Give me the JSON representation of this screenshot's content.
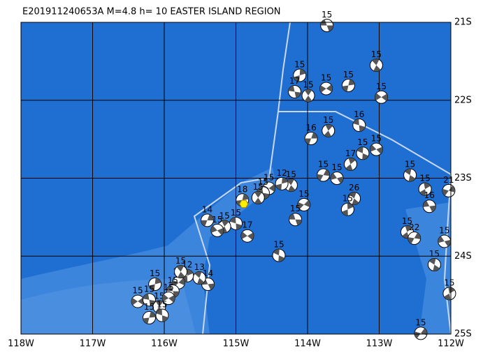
{
  "title": "E201911240653A M=4.8 h= 10 EASTER ISLAND REGION",
  "map": {
    "xlim": [
      -118,
      -112
    ],
    "ylim": [
      -25,
      -21
    ],
    "xticks": [
      {
        "value": -118,
        "label": "118W"
      },
      {
        "value": -117,
        "label": "117W"
      },
      {
        "value": -116,
        "label": "116W"
      },
      {
        "value": -115,
        "label": "115W"
      },
      {
        "value": -114,
        "label": "114W"
      },
      {
        "value": -113,
        "label": "113W"
      },
      {
        "value": -112,
        "label": "112W"
      }
    ],
    "yticks": [
      {
        "value": -21,
        "label": "21S"
      },
      {
        "value": -22,
        "label": "22S"
      },
      {
        "value": -23,
        "label": "23S"
      },
      {
        "value": -24,
        "label": "24S"
      },
      {
        "value": -25,
        "label": "25S"
      }
    ],
    "epicenter": {
      "lon": -114.89,
      "lat": -23.33
    },
    "events": [
      {
        "lon": -113.73,
        "lat": -21.04,
        "depth": 15
      },
      {
        "lon": -113.04,
        "lat": -21.55,
        "depth": 15
      },
      {
        "lon": -114.11,
        "lat": -21.68,
        "depth": 15
      },
      {
        "lon": -113.74,
        "lat": -21.85,
        "depth": 15
      },
      {
        "lon": -114.18,
        "lat": -21.89,
        "depth": 17
      },
      {
        "lon": -113.99,
        "lat": -21.94,
        "depth": 15
      },
      {
        "lon": -113.43,
        "lat": -21.81,
        "depth": 15
      },
      {
        "lon": -112.97,
        "lat": -21.96,
        "depth": 15
      },
      {
        "lon": -113.28,
        "lat": -22.32,
        "depth": 16
      },
      {
        "lon": -113.71,
        "lat": -22.39,
        "depth": 15
      },
      {
        "lon": -113.95,
        "lat": -22.49,
        "depth": 16
      },
      {
        "lon": -113.04,
        "lat": -22.63,
        "depth": 15
      },
      {
        "lon": -113.23,
        "lat": -22.68,
        "depth": 15
      },
      {
        "lon": -113.4,
        "lat": -22.82,
        "depth": 17
      },
      {
        "lon": -113.78,
        "lat": -22.96,
        "depth": 15
      },
      {
        "lon": -113.59,
        "lat": -23.0,
        "depth": 15
      },
      {
        "lon": -112.57,
        "lat": -22.96,
        "depth": 15
      },
      {
        "lon": -112.36,
        "lat": -23.14,
        "depth": 15
      },
      {
        "lon": -112.03,
        "lat": -23.16,
        "depth": 21
      },
      {
        "lon": -112.3,
        "lat": -23.36,
        "depth": 16
      },
      {
        "lon": -113.35,
        "lat": -23.26,
        "depth": 26
      },
      {
        "lon": -113.44,
        "lat": -23.4,
        "depth": 15
      },
      {
        "lon": -114.05,
        "lat": -23.34,
        "depth": 15
      },
      {
        "lon": -114.17,
        "lat": -23.53,
        "depth": 15
      },
      {
        "lon": -114.23,
        "lat": -23.09,
        "depth": 15
      },
      {
        "lon": -114.36,
        "lat": -23.07,
        "depth": 12
      },
      {
        "lon": -114.54,
        "lat": -23.13,
        "depth": 15
      },
      {
        "lon": -114.62,
        "lat": -23.19,
        "depth": 15
      },
      {
        "lon": -114.69,
        "lat": -23.25,
        "depth": 15
      },
      {
        "lon": -114.91,
        "lat": -23.28,
        "depth": 18
      },
      {
        "lon": -114.84,
        "lat": -23.74,
        "depth": 17
      },
      {
        "lon": -115.0,
        "lat": -23.58,
        "depth": 15
      },
      {
        "lon": -115.16,
        "lat": -23.62,
        "depth": 15
      },
      {
        "lon": -115.4,
        "lat": -23.54,
        "depth": 14
      },
      {
        "lon": -115.26,
        "lat": -23.67,
        "depth": 15
      },
      {
        "lon": -114.4,
        "lat": -23.99,
        "depth": 15
      },
      {
        "lon": -112.61,
        "lat": -23.69,
        "depth": 15
      },
      {
        "lon": -112.51,
        "lat": -23.77,
        "depth": 22
      },
      {
        "lon": -112.09,
        "lat": -23.81,
        "depth": 15
      },
      {
        "lon": -112.23,
        "lat": -24.11,
        "depth": 15
      },
      {
        "lon": -112.02,
        "lat": -24.48,
        "depth": 15
      },
      {
        "lon": -112.42,
        "lat": -24.99,
        "depth": 15
      },
      {
        "lon": -115.39,
        "lat": -24.36,
        "depth": 14
      },
      {
        "lon": -115.51,
        "lat": -24.28,
        "depth": 13
      },
      {
        "lon": -115.68,
        "lat": -24.25,
        "depth": 12
      },
      {
        "lon": -115.8,
        "lat": -24.34,
        "depth": 26
      },
      {
        "lon": -115.88,
        "lat": -24.45,
        "depth": 15
      },
      {
        "lon": -115.77,
        "lat": -24.2,
        "depth": 15
      },
      {
        "lon": -116.13,
        "lat": -24.36,
        "depth": 15
      },
      {
        "lon": -116.37,
        "lat": -24.58,
        "depth": 15
      },
      {
        "lon": -116.21,
        "lat": -24.56,
        "depth": 15
      },
      {
        "lon": -116.07,
        "lat": -24.65,
        "depth": 15
      },
      {
        "lon": -116.21,
        "lat": -24.79,
        "depth": 15
      },
      {
        "lon": -115.94,
        "lat": -24.54,
        "depth": 15
      },
      {
        "lon": -116.03,
        "lat": -24.76,
        "depth": 15
      }
    ]
  }
}
